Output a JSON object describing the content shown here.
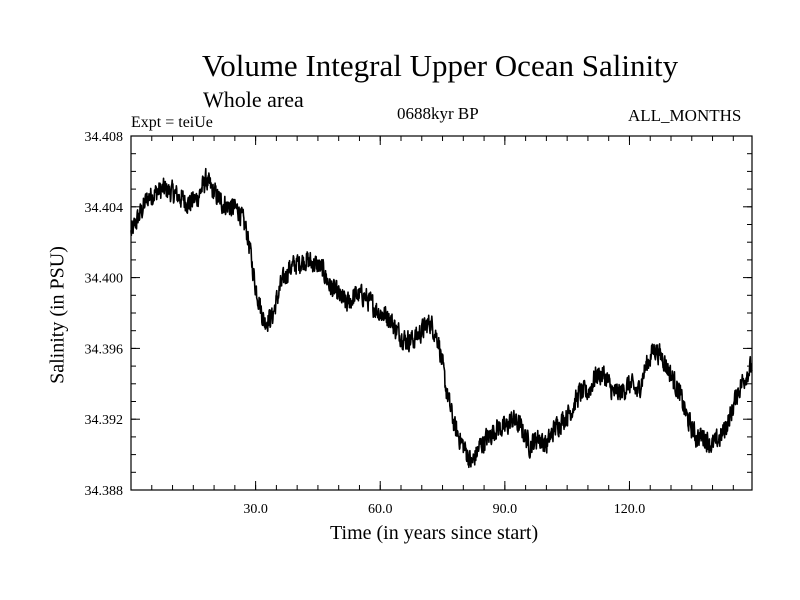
{
  "chart_data": {
    "type": "line",
    "title": "Volume Integral Upper Ocean Salinity",
    "subtitle": "Whole area",
    "experiment_label": "Expt = teiUe",
    "period_label": "0688kyr BP",
    "months_label": "ALL_MONTHS",
    "xlabel": "Time (in years since start)",
    "ylabel": "Salinity (in PSU)",
    "xlim": [
      0,
      149.5
    ],
    "ylim": [
      34.388,
      34.408
    ],
    "x_ticks": [
      30,
      60,
      90,
      120
    ],
    "x_tick_labels": [
      "30.0",
      "60.0",
      "90.0",
      "120.0"
    ],
    "y_ticks": [
      34.388,
      34.392,
      34.396,
      34.4,
      34.404,
      34.408
    ],
    "y_tick_labels": [
      "34.388",
      "34.392",
      "34.396",
      "34.400",
      "34.404",
      "34.408"
    ],
    "series": [
      {
        "name": "salinity",
        "x": [
          0,
          2,
          4,
          6,
          8,
          10,
          12,
          14,
          16,
          18,
          20,
          22,
          24,
          26,
          28,
          30,
          32,
          34,
          36,
          38,
          40,
          42,
          44,
          46,
          48,
          50,
          52,
          54,
          56,
          58,
          60,
          62,
          64,
          66,
          68,
          70,
          72,
          74,
          76,
          78,
          80,
          82,
          84,
          86,
          88,
          90,
          92,
          94,
          96,
          98,
          100,
          102,
          104,
          106,
          108,
          110,
          112,
          114,
          116,
          118,
          120,
          122,
          124,
          126,
          128,
          130,
          132,
          134,
          136,
          138,
          140,
          142,
          144,
          146,
          148,
          149.5
        ],
        "values": [
          34.4025,
          34.4035,
          34.4045,
          34.4048,
          34.405,
          34.4048,
          34.4045,
          34.4042,
          34.4045,
          34.4055,
          34.4048,
          34.4042,
          34.404,
          34.4038,
          34.4025,
          34.3995,
          34.3975,
          34.3978,
          34.3995,
          34.4005,
          34.4008,
          34.401,
          34.4008,
          34.4005,
          34.3995,
          34.399,
          34.3985,
          34.399,
          34.399,
          34.3985,
          34.398,
          34.3978,
          34.397,
          34.3965,
          34.3965,
          34.397,
          34.3975,
          34.3965,
          34.3935,
          34.3915,
          34.3905,
          34.3895,
          34.3905,
          34.391,
          34.3915,
          34.3915,
          34.392,
          34.3915,
          34.3905,
          34.391,
          34.3905,
          34.3915,
          34.392,
          34.3925,
          34.3935,
          34.3935,
          34.3945,
          34.3945,
          34.3935,
          34.3935,
          34.394,
          34.3935,
          34.395,
          34.396,
          34.3955,
          34.3945,
          34.3935,
          34.392,
          34.391,
          34.391,
          34.3905,
          34.391,
          34.392,
          34.3935,
          34.3945,
          34.395
        ]
      }
    ]
  }
}
